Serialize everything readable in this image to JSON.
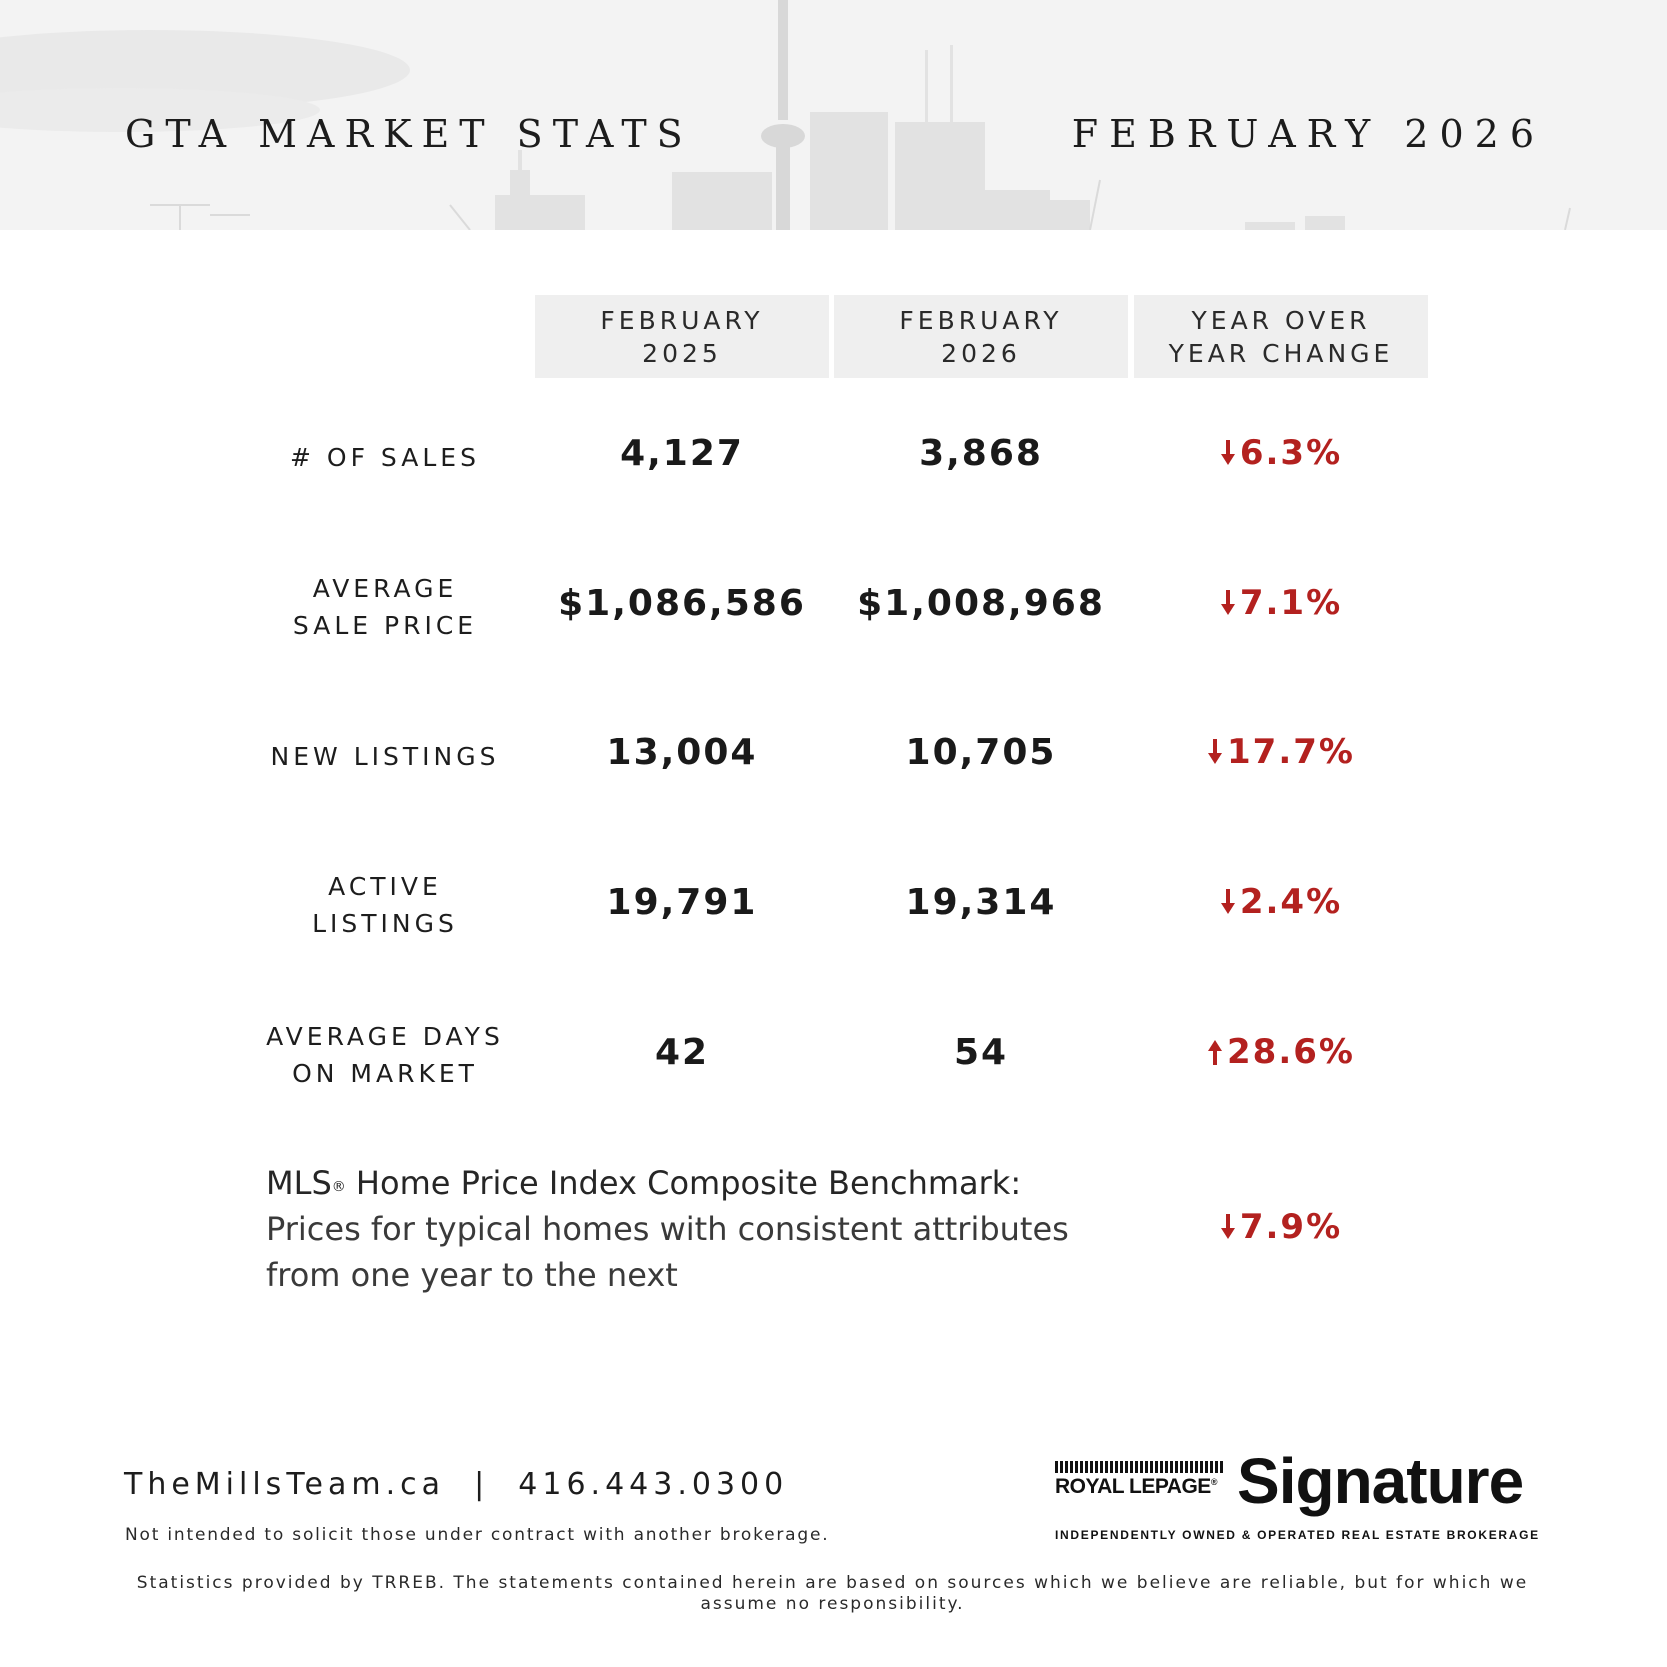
{
  "header": {
    "title_left": "GTA MARKET STATS",
    "title_right": "FEBRUARY 2026"
  },
  "columns": [
    "FEBRUARY\n2025",
    "FEBRUARY\n2026",
    "YEAR OVER\nYEAR CHANGE"
  ],
  "rows": [
    {
      "label": "# OF SALES",
      "v2025": "4,127",
      "v2026": "3,868",
      "change": "6.3%",
      "direction": "down"
    },
    {
      "label": "AVERAGE\nSALE PRICE",
      "v2025": "$1,086,586",
      "v2026": "$1,008,968",
      "change": "7.1%",
      "direction": "down"
    },
    {
      "label": "NEW LISTINGS",
      "v2025": "13,004",
      "v2026": "10,705",
      "change": "17.7%",
      "direction": "down"
    },
    {
      "label": "ACTIVE\nLISTINGS",
      "v2025": "19,791",
      "v2026": "19,314",
      "change": "2.4%",
      "direction": "down"
    },
    {
      "label": "AVERAGE DAYS\nON MARKET",
      "v2025": "42",
      "v2026": "54",
      "change": "28.6%",
      "direction": "up"
    }
  ],
  "hpi": {
    "title_prefix": "MLS",
    "registered": "®",
    "title_suffix": " Home Price Index Composite Benchmark:",
    "subtitle": "Prices for typical homes with consistent attributes from one year to the next",
    "change": "7.9%",
    "direction": "down"
  },
  "footer": {
    "contact": "TheMillsTeam.ca  |  416.443.0300",
    "disclaimer_1": "Not intended to solicit those under contract with another brokerage.",
    "disclaimer_2": "Statistics provided by TRREB. The statements contained herein are based on sources which we believe are reliable, but for which we assume no responsibility."
  },
  "logo": {
    "brand": "ROYAL LEPAGE",
    "registered": "®",
    "name": "Signature",
    "tagline": "INDEPENDENTLY OWNED & OPERATED REAL ESTATE BROKERAGE"
  },
  "colors": {
    "accent_red": "#b3211f",
    "header_bg": "#f3f3f3",
    "column_header_bg": "#efefef"
  },
  "icons": {
    "down": "arrow-down-icon",
    "up": "arrow-up-icon"
  }
}
